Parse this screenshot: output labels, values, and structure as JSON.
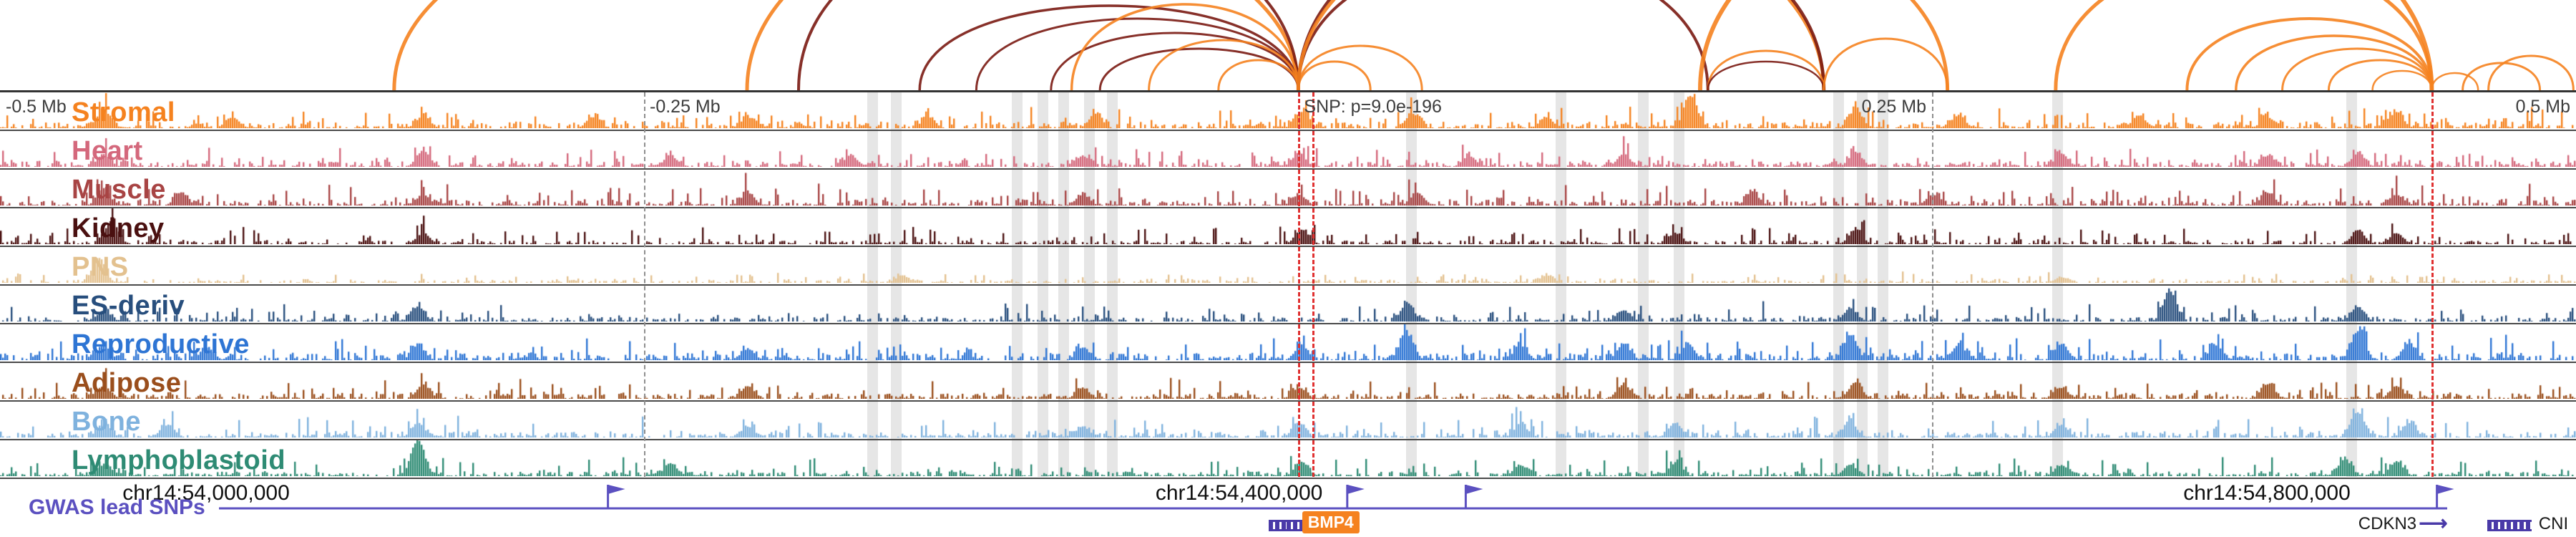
{
  "chart_data": {
    "type": "area",
    "kind": "genome-browser-locus-view",
    "title": "",
    "region_labels": [
      {
        "text": "-0.5 Mb",
        "x_pct": 0,
        "align": "left"
      },
      {
        "text": "-0.25 Mb",
        "x_pct": 25.0,
        "align": "left"
      },
      {
        "text": "SNP: p=9.0e-196",
        "x_pct": 50.4,
        "align": "left"
      },
      {
        "text": "0.25 Mb",
        "x_pct": 75.0,
        "align": "right"
      },
      {
        "text": "0.5 Mb",
        "x_pct": 100,
        "align": "right"
      }
    ],
    "coordinates": [
      {
        "text": "chr14:54,000,000",
        "x_pct": 8.0
      },
      {
        "text": "chr14:54,400,000",
        "x_pct": 48.1
      },
      {
        "text": "chr14:54,800,000",
        "x_pct": 88.0
      }
    ],
    "tracks": [
      {
        "label": "Stromal",
        "color": "#f5821f",
        "seed": 101,
        "fuzz": 0.18,
        "spike": 0.5,
        "peaks": [
          [
            4,
            0.5
          ],
          [
            9,
            0.3
          ],
          [
            16.4,
            0.35
          ],
          [
            23,
            0.3
          ],
          [
            29,
            0.3
          ],
          [
            36,
            0.3
          ],
          [
            42.5,
            0.4
          ],
          [
            50.5,
            0.45
          ],
          [
            54.8,
            0.4
          ],
          [
            60,
            0.3
          ],
          [
            65.6,
            0.9
          ],
          [
            72,
            0.5
          ],
          [
            76,
            0.35
          ],
          [
            83,
            0.35
          ],
          [
            88,
            0.3
          ],
          [
            93,
            0.45
          ]
        ]
      },
      {
        "label": "Heart",
        "color": "#d4687c",
        "seed": 102,
        "fuzz": 0.16,
        "spike": 0.45,
        "peaks": [
          [
            4,
            0.35
          ],
          [
            16.4,
            0.45
          ],
          [
            26,
            0.3
          ],
          [
            33,
            0.3
          ],
          [
            42,
            0.3
          ],
          [
            50.4,
            0.35
          ],
          [
            57,
            0.3
          ],
          [
            63,
            0.35
          ],
          [
            72,
            0.4
          ],
          [
            80,
            0.35
          ],
          [
            88,
            0.3
          ],
          [
            91.5,
            0.35
          ]
        ]
      },
      {
        "label": "Muscle",
        "color": "#a84444",
        "seed": 103,
        "fuzz": 0.16,
        "spike": 0.5,
        "peaks": [
          [
            4,
            0.4
          ],
          [
            7,
            0.35
          ],
          [
            16.4,
            0.3
          ],
          [
            29,
            0.35
          ],
          [
            42,
            0.3
          ],
          [
            50.4,
            0.3
          ],
          [
            55,
            0.35
          ],
          [
            68,
            0.35
          ],
          [
            75,
            0.3
          ],
          [
            88,
            0.35
          ],
          [
            93,
            0.3
          ]
        ]
      },
      {
        "label": "Kidney",
        "color": "#4a1010",
        "seed": 104,
        "fuzz": 0.1,
        "spike": 0.45,
        "peaks": [
          [
            4.3,
            0.65
          ],
          [
            16.4,
            0.3
          ],
          [
            50.5,
            0.4
          ],
          [
            65,
            0.3
          ],
          [
            72,
            0.4
          ],
          [
            91.5,
            0.35
          ],
          [
            93,
            0.3
          ]
        ]
      },
      {
        "label": "PNS",
        "color": "#e3c18f",
        "seed": 105,
        "fuzz": 0.07,
        "spike": 0.25,
        "peaks": [
          [
            3.8,
            0.7
          ],
          [
            35,
            0.2
          ],
          [
            60,
            0.2
          ],
          [
            80,
            0.15
          ]
        ]
      },
      {
        "label": "ES-deriv",
        "color": "#274e7d",
        "seed": 106,
        "fuzz": 0.12,
        "spike": 0.45,
        "peaks": [
          [
            4,
            0.3
          ],
          [
            16.2,
            0.4
          ],
          [
            54.6,
            0.5
          ],
          [
            63,
            0.3
          ],
          [
            71.8,
            0.35
          ],
          [
            84.2,
            0.85
          ],
          [
            91.5,
            0.4
          ]
        ]
      },
      {
        "label": "Reproductive",
        "color": "#2e75d4",
        "seed": 107,
        "fuzz": 0.2,
        "spike": 0.55,
        "peaks": [
          [
            4,
            0.4
          ],
          [
            8,
            0.35
          ],
          [
            16.2,
            0.4
          ],
          [
            29,
            0.3
          ],
          [
            42,
            0.35
          ],
          [
            50.5,
            0.4
          ],
          [
            54.6,
            0.7
          ],
          [
            59,
            0.4
          ],
          [
            63,
            0.45
          ],
          [
            65.5,
            0.4
          ],
          [
            71.8,
            0.7
          ],
          [
            76,
            0.4
          ],
          [
            80,
            0.45
          ],
          [
            86,
            0.4
          ],
          [
            91.5,
            0.8
          ],
          [
            93.5,
            0.45
          ]
        ]
      },
      {
        "label": "Adipose",
        "color": "#9a4e1c",
        "seed": 108,
        "fuzz": 0.15,
        "spike": 0.45,
        "peaks": [
          [
            4,
            0.35
          ],
          [
            16.4,
            0.4
          ],
          [
            29,
            0.35
          ],
          [
            42,
            0.3
          ],
          [
            50.4,
            0.3
          ],
          [
            63,
            0.4
          ],
          [
            72,
            0.45
          ],
          [
            80,
            0.3
          ],
          [
            88,
            0.4
          ],
          [
            93,
            0.35
          ]
        ]
      },
      {
        "label": "Bone",
        "color": "#7fb2de",
        "seed": 109,
        "fuzz": 0.15,
        "spike": 0.5,
        "peaks": [
          [
            4,
            0.4
          ],
          [
            6.5,
            0.35
          ],
          [
            16.2,
            0.4
          ],
          [
            29,
            0.3
          ],
          [
            42,
            0.3
          ],
          [
            50.4,
            0.4
          ],
          [
            59,
            0.35
          ],
          [
            65,
            0.4
          ],
          [
            71.8,
            0.4
          ],
          [
            80,
            0.35
          ],
          [
            91.5,
            0.7
          ],
          [
            93.5,
            0.4
          ]
        ]
      },
      {
        "label": "Lymphoblastoid",
        "color": "#2e8b74",
        "seed": 110,
        "fuzz": 0.12,
        "spike": 0.5,
        "peaks": [
          [
            4,
            0.3
          ],
          [
            16.2,
            1.0
          ],
          [
            26,
            0.35
          ],
          [
            50.5,
            0.4
          ],
          [
            59,
            0.3
          ],
          [
            65,
            0.35
          ],
          [
            71.8,
            0.3
          ],
          [
            80,
            0.3
          ],
          [
            91,
            0.45
          ],
          [
            93,
            0.4
          ]
        ]
      }
    ],
    "arcs": {
      "colors": {
        "orange": "#f5821f",
        "dark": "#7a1a12"
      },
      "items": [
        [
          15.3,
          50.4,
          280,
          5,
          "o"
        ],
        [
          29.0,
          70.8,
          330,
          5,
          "o"
        ],
        [
          31.0,
          50.4,
          240,
          4,
          "d"
        ],
        [
          35.7,
          50.4,
          118,
          3.5,
          "d"
        ],
        [
          37.9,
          50.4,
          100,
          3,
          "d"
        ],
        [
          40.8,
          50.4,
          80,
          3,
          "d"
        ],
        [
          41.6,
          50.4,
          120,
          3.5,
          "o"
        ],
        [
          42.7,
          50.4,
          58,
          3,
          "d"
        ],
        [
          44.6,
          50.4,
          70,
          3,
          "o"
        ],
        [
          47.3,
          50.4,
          42,
          3,
          "o"
        ],
        [
          50.4,
          53.2,
          40,
          3,
          "o"
        ],
        [
          50.4,
          55.2,
          62,
          3,
          "o"
        ],
        [
          50.4,
          66.3,
          190,
          4,
          "d"
        ],
        [
          50.4,
          70.8,
          250,
          4.5,
          "d"
        ],
        [
          50.4,
          75.6,
          260,
          5,
          "o"
        ],
        [
          66.3,
          70.8,
          55,
          3,
          "o"
        ],
        [
          66.3,
          70.8,
          40,
          2.5,
          "d"
        ],
        [
          70.8,
          75.6,
          72,
          3,
          "o"
        ],
        [
          66.0,
          94.4,
          300,
          6,
          "o"
        ],
        [
          79.8,
          94.4,
          185,
          5,
          "o"
        ],
        [
          84.9,
          94.4,
          100,
          4,
          "o"
        ],
        [
          86.8,
          94.4,
          76,
          3.5,
          "o"
        ],
        [
          88.6,
          94.4,
          58,
          3,
          "o"
        ],
        [
          90.4,
          94.4,
          42,
          3,
          "o"
        ],
        [
          92.1,
          94.4,
          27,
          2.5,
          "o"
        ],
        [
          94.4,
          96.2,
          24,
          2.5,
          "o"
        ],
        [
          95.6,
          98.6,
          38,
          3,
          "o"
        ],
        [
          96.6,
          99.9,
          48,
          3,
          "o"
        ]
      ]
    },
    "highlight_bands_x_pct": [
      33.9,
      34.8,
      39.5,
      40.5,
      41.3,
      42.3,
      43.2,
      54.8,
      60.6,
      63.8,
      65.2,
      71.4,
      72.3,
      73.1,
      79.9,
      91.3
    ],
    "dashed_lines": [
      {
        "x_pct": 25.0,
        "color": "gray"
      },
      {
        "x_pct": 50.4,
        "color": "red"
      },
      {
        "x_pct": 50.95,
        "color": "red"
      },
      {
        "x_pct": 75.0,
        "color": "gray"
      },
      {
        "x_pct": 94.4,
        "color": "red"
      }
    ],
    "gwas": {
      "label": "GWAS lead SNPs",
      "color": "#5b50c0",
      "line_x_pct": [
        8.5,
        95.0
      ],
      "flags_x_pct": [
        23.6,
        52.3,
        56.9,
        94.6
      ]
    },
    "genes": {
      "color": "#4a3aa8",
      "glyphs": [
        {
          "x_pct": 49.25,
          "w": 28
        },
        {
          "x_pct": 49.95,
          "w": 32
        },
        {
          "x_pct": 96.55,
          "w": 62
        }
      ],
      "arrows": [
        {
          "x_pct": 93.9
        }
      ],
      "labels": [
        {
          "text": "BMP4",
          "x_pct": 50.55,
          "highlight": true
        },
        {
          "text": "CDKN3",
          "x_pct": 91.55,
          "highlight": false
        },
        {
          "text": "CNI",
          "x_pct": 98.55,
          "highlight": false
        }
      ],
      "highlight_bg": "#f5821f",
      "highlight_text": "#ffffff"
    }
  }
}
